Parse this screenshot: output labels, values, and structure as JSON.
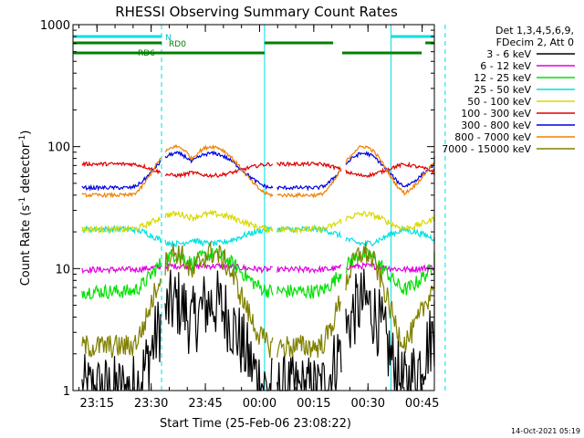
{
  "chart_data": {
    "type": "line",
    "title": "RHESSI Observing Summary Count Rates",
    "xlabel": "Start Time (25-Feb-06 23:08:22)",
    "ylabel": "Count Rate (s⁻¹ detector⁻¹)",
    "ylabel_parts": [
      "Count Rate (s",
      "-1",
      " detector",
      "-1",
      ")"
    ],
    "y_scale": "log",
    "ylim": [
      1,
      1000
    ],
    "xlim_minutes": [
      0,
      100
    ],
    "x_ticks": [
      {
        "label": "23:15",
        "min": 6.63
      },
      {
        "label": "23:30",
        "min": 21.63
      },
      {
        "label": "23:45",
        "min": 36.63
      },
      {
        "label": "00:00",
        "min": 51.63
      },
      {
        "label": "00:15",
        "min": 66.63
      },
      {
        "label": "00:30",
        "min": 81.63
      },
      {
        "label": "00:45",
        "min": 96.63
      }
    ],
    "y_ticks": [
      {
        "label": "1",
        "value": 1
      },
      {
        "label": "10",
        "value": 10
      },
      {
        "label": "100",
        "value": 100
      },
      {
        "label": "1000",
        "value": 1000
      }
    ],
    "legend_header": [
      "Det 1,3,4,5,6,9,",
      "FDecim 2, Att 0"
    ],
    "legend_position": "right",
    "flag_labels": [
      "N",
      "RD0",
      "RD6"
    ],
    "series": [
      {
        "name": "3 - 6 keV",
        "color": "#000000",
        "base": 1.0,
        "peak": 5.2,
        "noise": 0.6
      },
      {
        "name": "6 - 12 keV",
        "color": "#e000e0",
        "base": 9.8,
        "peak": 10.5,
        "noise": 0.05
      },
      {
        "name": "12 - 25 keV",
        "color": "#00e000",
        "base": 6.5,
        "peak": 13.0,
        "noise": 0.12
      },
      {
        "name": "25 - 50 keV",
        "color": "#00e0e0",
        "base": 21.0,
        "peak": 16.0,
        "noise": 0.05
      },
      {
        "name": "50 - 100 keV",
        "color": "#d8d800",
        "base": 21.0,
        "peak": 28.0,
        "noise": 0.05
      },
      {
        "name": "100 - 300 keV",
        "color": "#e00000",
        "base": 72.0,
        "peak": 58.0,
        "noise": 0.03
      },
      {
        "name": "300 - 800 keV",
        "color": "#0000e0",
        "base": 46.0,
        "peak": 88.0,
        "noise": 0.03
      },
      {
        "name": "800 - 7000 keV",
        "color": "#f08000",
        "base": 40.0,
        "peak": 100.0,
        "noise": 0.03
      },
      {
        "name": "7000 - 15000 keV",
        "color": "#808000",
        "base": 2.3,
        "peak": 13.5,
        "noise": 0.2
      }
    ],
    "saa_gaps_min": [
      [
        0,
        2.5
      ],
      [
        24.5,
        25.5
      ],
      [
        55.5,
        56.5
      ],
      [
        74.5,
        75.5
      ],
      [
        101.5,
        102.5
      ]
    ],
    "flag_bars": [
      {
        "label": "N",
        "color": "#00e0e0",
        "level": "top",
        "from_min": 0,
        "to_min": 24.5
      },
      {
        "label": "N",
        "color": "#00e0e0",
        "level": "top",
        "from_min": 88,
        "to_min": 102
      },
      {
        "label": "RD0",
        "color": "#008000",
        "level": "mid",
        "from_min": 0,
        "to_min": 24.5
      },
      {
        "label": "RD0",
        "color": "#008000",
        "level": "mid",
        "from_min": 53,
        "to_min": 72
      },
      {
        "label": "RD0",
        "color": "#008000",
        "level": "mid",
        "from_min": 97.5,
        "to_min": 102.5
      },
      {
        "label": "RD6",
        "color": "#008000",
        "level": "low",
        "from_min": 0,
        "to_min": 53
      },
      {
        "label": "RD6",
        "color": "#008000",
        "level": "low",
        "from_min": 74.5,
        "to_min": 96.5
      }
    ],
    "vlines_solid_min": [
      0,
      53,
      88
    ],
    "vlines_dashed_min": [
      24.5,
      103
    ]
  },
  "timestamp": "14-Oct-2021 05:19"
}
